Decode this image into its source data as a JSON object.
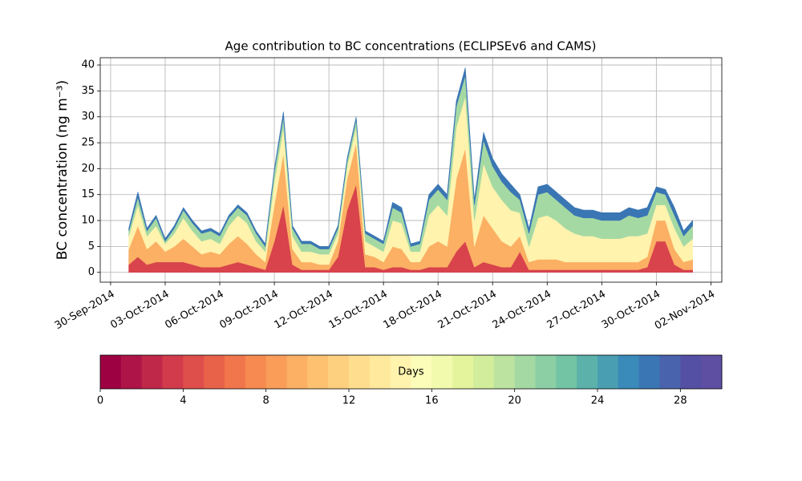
{
  "chart_data": {
    "type": "stackedarea",
    "title": "Age contribution to BC concentrations (ECLIPSEv6 and CAMS)",
    "y_label": "BC concentration (ng m⁻³)",
    "x": [
      1,
      1.5,
      2,
      2.5,
      3,
      3.5,
      4,
      4.5,
      5,
      5.5,
      6,
      6.5,
      7,
      7.5,
      8,
      8.5,
      9,
      9.5,
      10,
      10.5,
      11,
      11.5,
      12,
      12.5,
      13,
      13.5,
      14,
      14.5,
      15,
      15.5,
      16,
      16.5,
      17,
      17.5,
      18,
      18.5,
      19,
      19.5,
      20,
      20.5,
      21,
      21.5,
      22,
      22.5,
      23,
      23.5,
      24,
      24.5,
      25,
      25.5,
      26,
      26.5,
      27,
      27.5,
      28,
      28.5,
      29,
      29.5,
      30,
      30.5,
      31,
      31.5,
      32
    ],
    "series": [
      {
        "color": "#d8434c",
        "values": [
          1.5,
          3,
          1.5,
          2,
          2,
          2,
          2,
          1.5,
          1,
          1,
          1,
          1.5,
          2,
          1.5,
          1,
          0.5,
          6,
          13,
          1.5,
          0.5,
          0.5,
          0.5,
          0.5,
          3,
          12,
          17,
          1,
          1,
          0.5,
          1,
          1,
          0.5,
          0.5,
          1,
          1,
          1,
          4,
          6,
          1,
          2,
          1.5,
          1,
          1,
          4,
          0.5,
          0.5,
          0.5,
          0.5,
          0.5,
          0.5,
          0.5,
          0.5,
          0.5,
          0.5,
          0.5,
          0.5,
          0.5,
          1,
          6,
          6,
          1.5,
          0.5,
          0.5
        ]
      },
      {
        "color": "#fbb064",
        "values": [
          3,
          6,
          3,
          4,
          2,
          3,
          4.5,
          3.5,
          2.5,
          3,
          2.5,
          4,
          5,
          4,
          2.5,
          1.5,
          7,
          10,
          3,
          1.5,
          1.5,
          1,
          1,
          3,
          6,
          8,
          2.5,
          2,
          1.5,
          4,
          3.5,
          1.5,
          1.5,
          4,
          5,
          4,
          14,
          18,
          4,
          9,
          7,
          5,
          4,
          3,
          1.5,
          2,
          2,
          2,
          1.5,
          1.5,
          1.5,
          1.5,
          1.5,
          1.5,
          1.5,
          1.5,
          1.5,
          2,
          4,
          4,
          3,
          1.5,
          2
        ]
      },
      {
        "color": "#fff3ad",
        "values": [
          2.5,
          4,
          2.5,
          3,
          1.5,
          2.5,
          4,
          3,
          2.5,
          2.5,
          2,
          3.5,
          4,
          4,
          2.5,
          2,
          4.5,
          5,
          2.5,
          2,
          2,
          2,
          2,
          1.5,
          2.5,
          3,
          2.5,
          2,
          2,
          5,
          5,
          2,
          2,
          6,
          7,
          6,
          10,
          10,
          5,
          10,
          8,
          8,
          7,
          4.5,
          3,
          8,
          8.5,
          7.5,
          6.5,
          5.5,
          5,
          5,
          4.5,
          4.5,
          4.5,
          5,
          5,
          4.5,
          3,
          3,
          4,
          3,
          4
        ]
      },
      {
        "color": "#a5d9a3",
        "values": [
          1,
          1.5,
          1,
          1.5,
          0.5,
          1,
          1.5,
          1.5,
          1.5,
          1.5,
          1.5,
          1.5,
          1.5,
          1.5,
          1.5,
          1,
          2,
          2,
          1.5,
          1.5,
          1.5,
          1,
          1,
          1,
          1,
          1.5,
          1.5,
          1.5,
          1.5,
          2.5,
          2,
          1,
          1.5,
          3,
          3,
          3,
          4,
          4,
          3,
          4.5,
          4,
          3.5,
          3.5,
          2.5,
          2.5,
          4.5,
          4.5,
          4,
          4,
          3.5,
          3.5,
          3.5,
          3.5,
          3.5,
          3.5,
          4,
          3.5,
          3.5,
          2.5,
          2,
          2.5,
          2,
          2.5
        ]
      },
      {
        "color": "#3a76b4",
        "values": [
          0.5,
          1,
          0.5,
          0.5,
          0.5,
          0.5,
          0.5,
          0.5,
          0.5,
          0.5,
          0.5,
          0.5,
          0.5,
          0.5,
          0.5,
          0.5,
          0.5,
          1,
          0.5,
          0.5,
          0.5,
          0.5,
          0.5,
          0.5,
          0.5,
          0.5,
          0.5,
          0.5,
          0.5,
          1,
          1,
          0.5,
          0.5,
          1,
          1,
          1,
          1,
          1.5,
          1,
          1.5,
          1.5,
          1.5,
          1.5,
          1,
          1,
          1.5,
          1.5,
          1.5,
          1.5,
          1.5,
          1.5,
          1.5,
          1.5,
          1.5,
          1.5,
          1.5,
          1.5,
          1.5,
          1,
          1,
          1.5,
          1,
          1
        ]
      }
    ],
    "xlim": [
      -0.57,
      33.6
    ],
    "xticks": [
      {
        "value": 0,
        "label": "30-Sep-2014"
      },
      {
        "value": 3,
        "label": "03-Oct-2014"
      },
      {
        "value": 6,
        "label": "06-Oct-2014"
      },
      {
        "value": 9,
        "label": "09-Oct-2014"
      },
      {
        "value": 12,
        "label": "12-Oct-2014"
      },
      {
        "value": 15,
        "label": "15-Oct-2014"
      },
      {
        "value": 18,
        "label": "18-Oct-2014"
      },
      {
        "value": 21,
        "label": "21-Oct-2014"
      },
      {
        "value": 24,
        "label": "24-Oct-2014"
      },
      {
        "value": 27,
        "label": "27-Oct-2014"
      },
      {
        "value": 30,
        "label": "30-Oct-2014"
      },
      {
        "value": 33,
        "label": "02-Nov-2014"
      }
    ],
    "ylim": [
      -1.9,
      41.4
    ],
    "yticks": [
      0,
      5,
      10,
      15,
      20,
      25,
      30,
      35,
      40
    ],
    "grid": true,
    "colorbar": {
      "label": "Days",
      "lim": [
        0,
        30
      ],
      "ticks": [
        0,
        4,
        8,
        12,
        16,
        20,
        24,
        28
      ],
      "colors": [
        "#9e0142",
        "#ae1447",
        "#c0284a",
        "#d13b4b",
        "#de4e4b",
        "#e8624a",
        "#f2764b",
        "#f68a50",
        "#f99d59",
        "#fbb064",
        "#fdc170",
        "#fdd07f",
        "#fede8e",
        "#fee99d",
        "#fff3ad",
        "#fcfdb9",
        "#f2faad",
        "#e4f49d",
        "#d2ed9b",
        "#bce39f",
        "#a5d9a3",
        "#8ccfa4",
        "#72c4a5",
        "#5cb1aa",
        "#4a9eb2",
        "#3a8aba",
        "#3a76b4",
        "#4963ac",
        "#5450a4",
        "#5e4fa2"
      ]
    }
  }
}
